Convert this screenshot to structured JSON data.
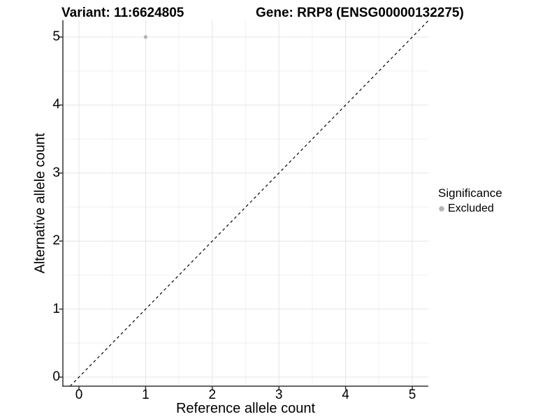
{
  "titles": {
    "variant": "Variant: 11:6624805",
    "gene": "Gene: RRP8 (ENSG00000132275)"
  },
  "chart_data": {
    "type": "scatter",
    "xlabel": "Reference allele count",
    "ylabel": "Alternative allele count",
    "xticks": [
      0,
      1,
      2,
      3,
      4,
      5
    ],
    "yticks": [
      0,
      1,
      2,
      3,
      4,
      5
    ],
    "xlim": [
      -0.25,
      5.25
    ],
    "ylim": [
      -0.14,
      5.26
    ],
    "grid": "major and minor gridlines, light gray on white panel",
    "points": [
      {
        "x": 1,
        "y": 5,
        "series": "Excluded"
      }
    ],
    "reference_line": {
      "equation": "y = x",
      "style": "dashed",
      "color": "#000000"
    },
    "legend": {
      "title": "Significance",
      "position": "right",
      "entries": [
        {
          "label": "Excluded",
          "color": "#b4b4b4",
          "marker": "circle"
        }
      ]
    }
  },
  "colors": {
    "background": "#ffffff",
    "grid_major": "#e4e4e4",
    "grid_minor": "#f1f1f1",
    "axis": "#333333",
    "point": "#b4b4b4",
    "text": "#000000"
  }
}
